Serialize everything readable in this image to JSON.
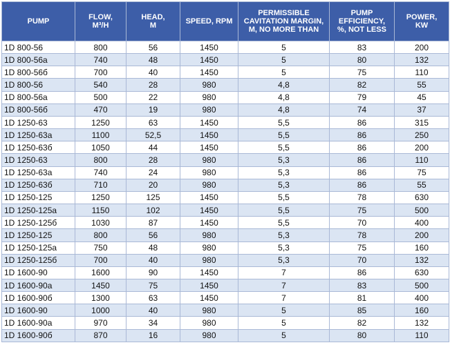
{
  "table": {
    "header": [
      "PUMP",
      "FLOW,\nM³/H",
      "HEAD,\nM",
      "SPEED, RPM",
      "PERMISSIBLE\nCAVITATION MARGIN,\nM, NO MORE THAN",
      "PUMP\nEFFICIENCY,\n%, NOT LESS",
      "POWER,\nKW"
    ],
    "rows": [
      [
        "1D 800-56",
        "800",
        "56",
        "1450",
        "5",
        "83",
        "200"
      ],
      [
        "1D 800-56a",
        "740",
        "48",
        "1450",
        "5",
        "80",
        "132"
      ],
      [
        "1D 800-56б",
        "700",
        "40",
        "1450",
        "5",
        "75",
        "110"
      ],
      [
        "1D 800-56",
        "540",
        "28",
        "980",
        "4,8",
        "82",
        "55"
      ],
      [
        "1D 800-56a",
        "500",
        "22",
        "980",
        "4,8",
        "79",
        "45"
      ],
      [
        "1D 800-56б",
        "470",
        "19",
        "980",
        "4,8",
        "74",
        "37"
      ],
      [
        "1D 1250-63",
        "1250",
        "63",
        "1450",
        "5,5",
        "86",
        "315"
      ],
      [
        "1D 1250-63a",
        "1100",
        "52,5",
        "1450",
        "5,5",
        "86",
        "250"
      ],
      [
        "1D 1250-63б",
        "1050",
        "44",
        "1450",
        "5,5",
        "86",
        "200"
      ],
      [
        "1D 1250-63",
        "800",
        "28",
        "980",
        "5,3",
        "86",
        "110"
      ],
      [
        "1D 1250-63a",
        "740",
        "24",
        "980",
        "5,3",
        "86",
        "75"
      ],
      [
        "1D 1250-63б",
        "710",
        "20",
        "980",
        "5,3",
        "86",
        "55"
      ],
      [
        "1D 1250-125",
        "1250",
        "125",
        "1450",
        "5,5",
        "78",
        "630"
      ],
      [
        "1D 1250-125a",
        "1150",
        "102",
        "1450",
        "5,5",
        "75",
        "500"
      ],
      [
        "1D 1250-125б",
        "1030",
        "87",
        "1450",
        "5,5",
        "70",
        "400"
      ],
      [
        "1D 1250-125",
        "800",
        "56",
        "980",
        "5,3",
        "78",
        "200"
      ],
      [
        "1D 1250-125a",
        "750",
        "48",
        "980",
        "5,3",
        "75",
        "160"
      ],
      [
        "1D 1250-125б",
        "700",
        "40",
        "980",
        "5,3",
        "70",
        "132"
      ],
      [
        "1D 1600-90",
        "1600",
        "90",
        "1450",
        "7",
        "86",
        "630"
      ],
      [
        "1D 1600-90a",
        "1450",
        "75",
        "1450",
        "7",
        "83",
        "500"
      ],
      [
        "1D 1600-90б",
        "1300",
        "63",
        "1450",
        "7",
        "81",
        "400"
      ],
      [
        "1D 1600-90",
        "1000",
        "40",
        "980",
        "5",
        "85",
        "160"
      ],
      [
        "1D 1600-90a",
        "970",
        "34",
        "980",
        "5",
        "82",
        "132"
      ],
      [
        "1D 1600-90б",
        "870",
        "16",
        "980",
        "5",
        "80",
        "110"
      ]
    ]
  }
}
